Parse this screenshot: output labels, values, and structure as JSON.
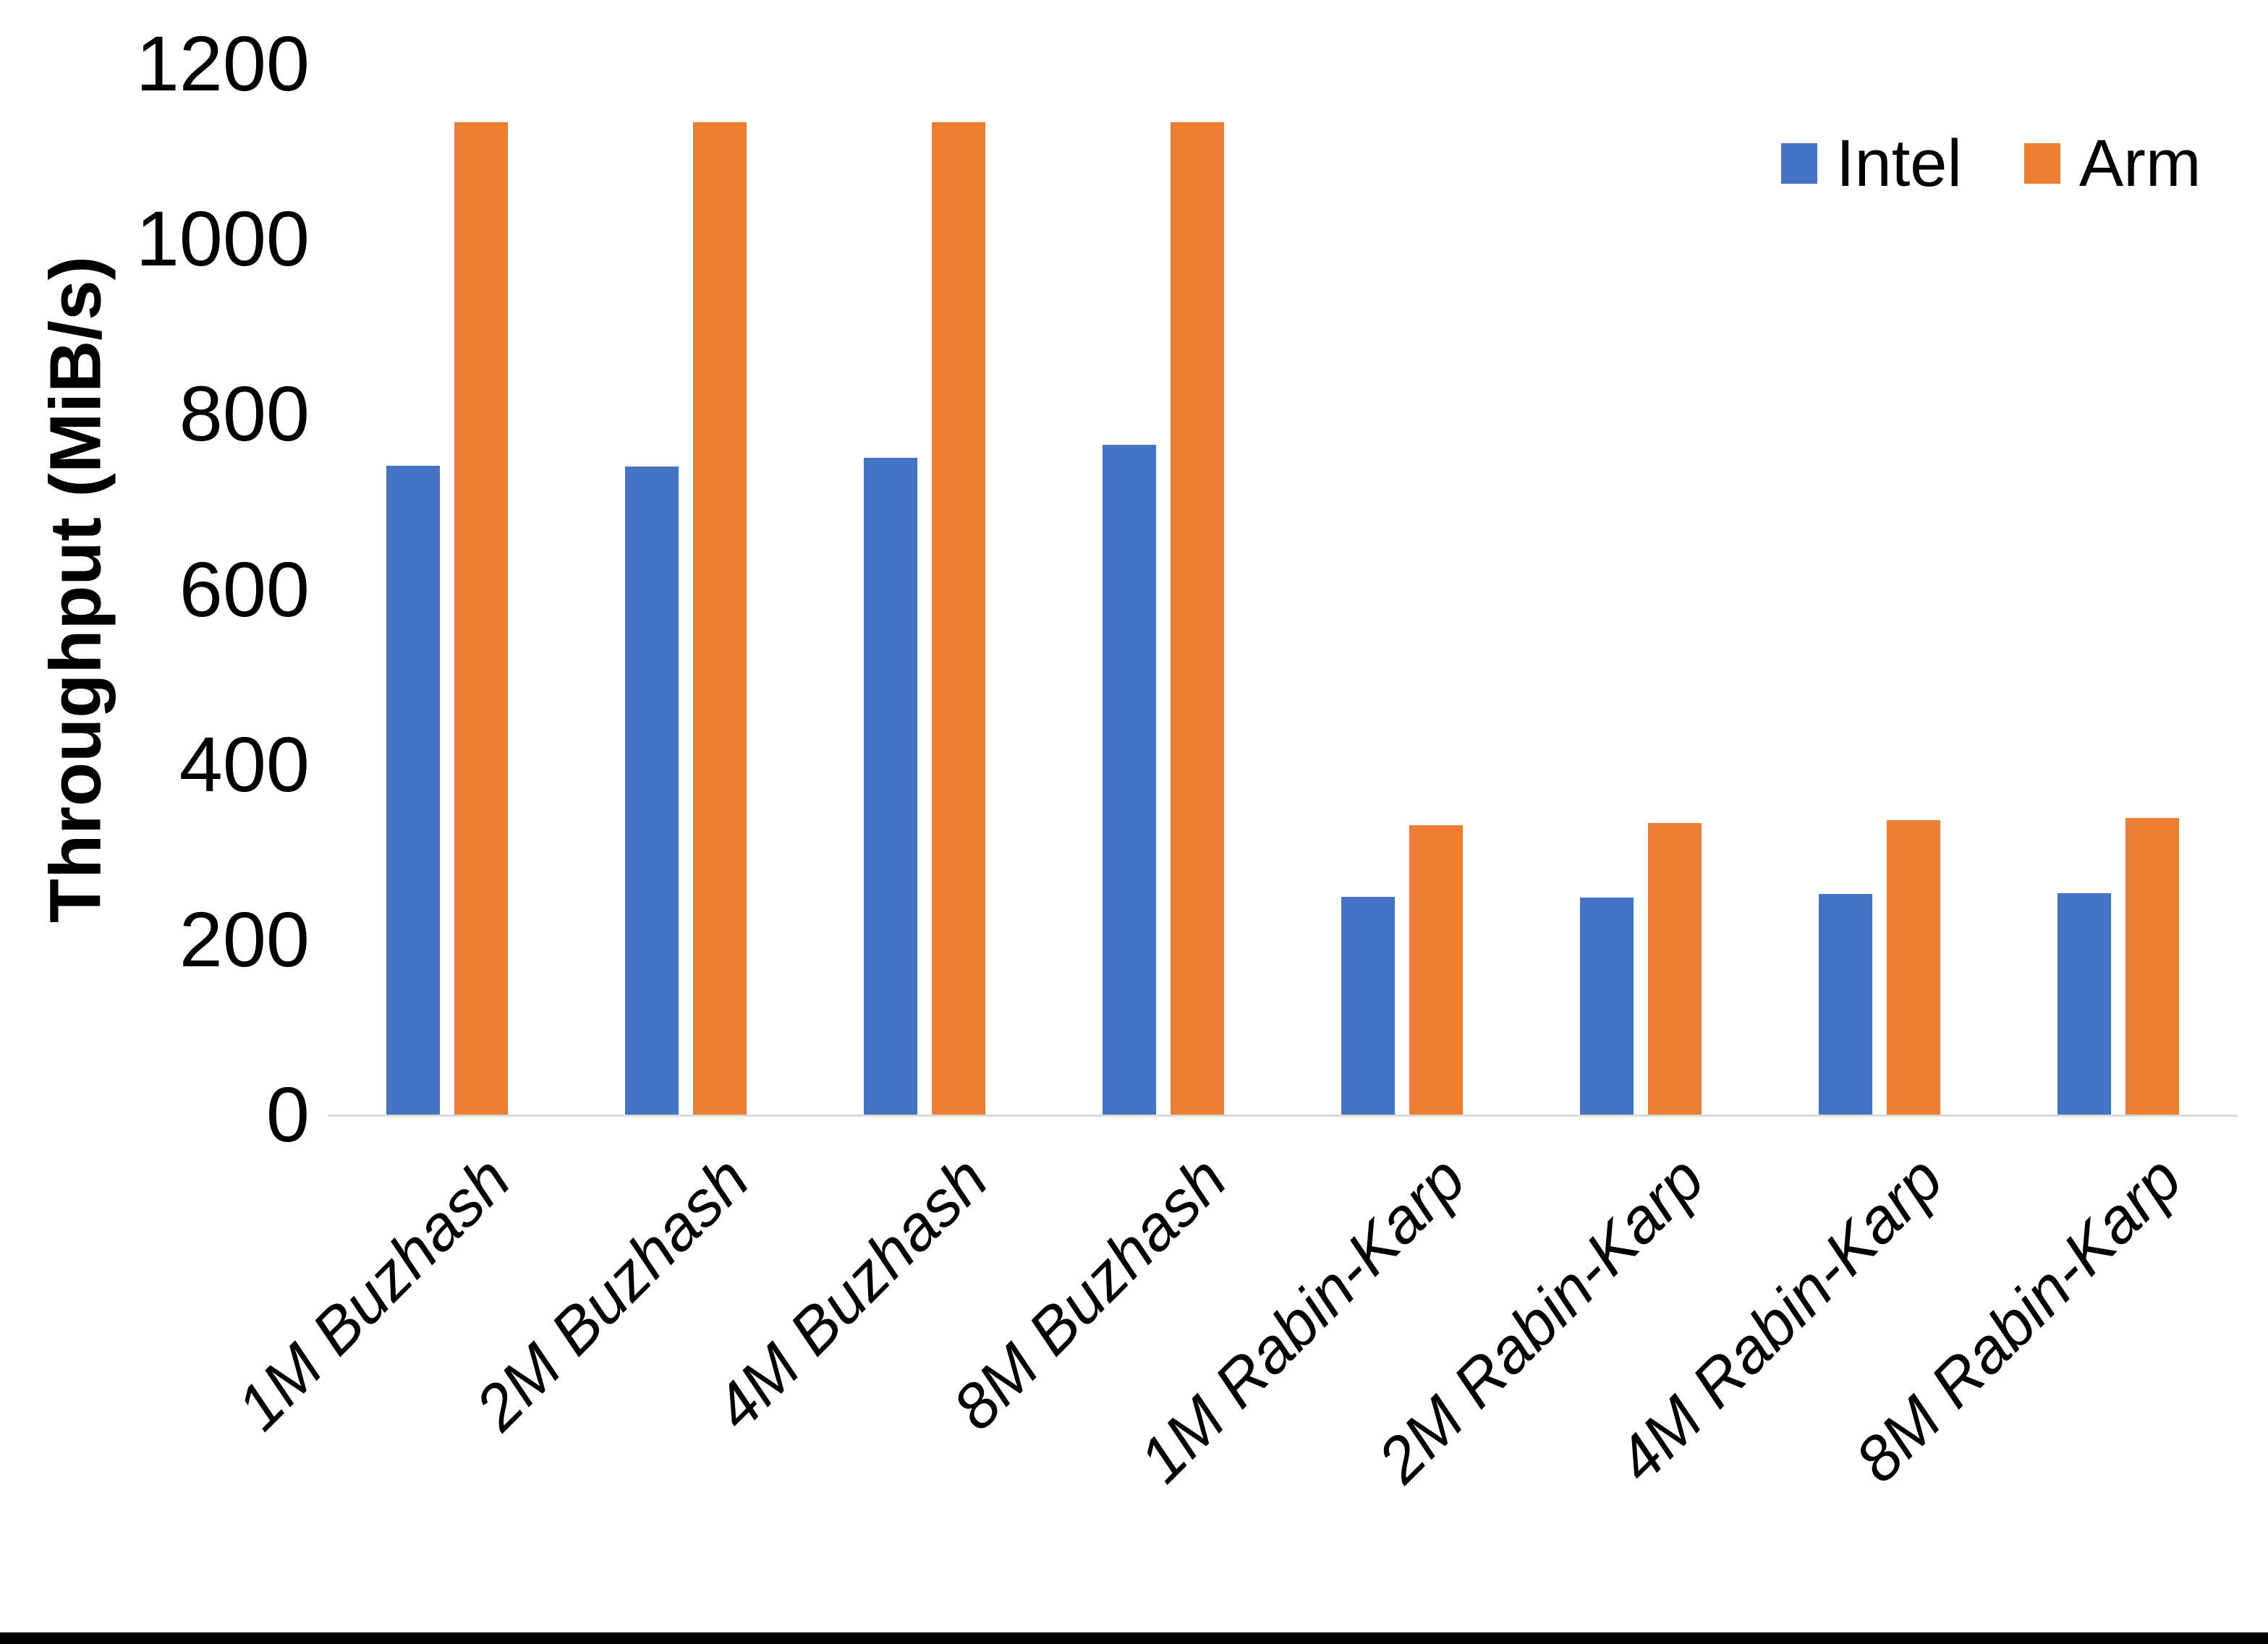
{
  "chart_data": {
    "type": "bar",
    "title": "",
    "ylabel": "Throughput (MiB/s)",
    "xlabel": "",
    "categories": [
      "1M Buzhash",
      "2M Buzhash",
      "4M Buzhash",
      "8M Buzhash",
      "1M Rabin-Karp",
      "2M Rabin-Karp",
      "4M Rabin-Karp",
      "8M Rabin-Karp"
    ],
    "series": [
      {
        "name": "Intel",
        "color": "#4472C4",
        "values": [
          741,
          740,
          750,
          765,
          249,
          248,
          252,
          253
        ]
      },
      {
        "name": "Arm",
        "color": "#ED7D31",
        "values": [
          1133,
          1133,
          1133,
          1133,
          330,
          333,
          336,
          339
        ]
      }
    ],
    "ylim": [
      0,
      1200
    ],
    "yticks": [
      0,
      200,
      400,
      600,
      800,
      1000,
      1200
    ],
    "grid": false,
    "legend_position": "top-right",
    "axis_line_color": "#D9D9D9",
    "text_color": "#000000",
    "background_color": "#FFFFFF",
    "bottom_border_color": "#000000"
  }
}
